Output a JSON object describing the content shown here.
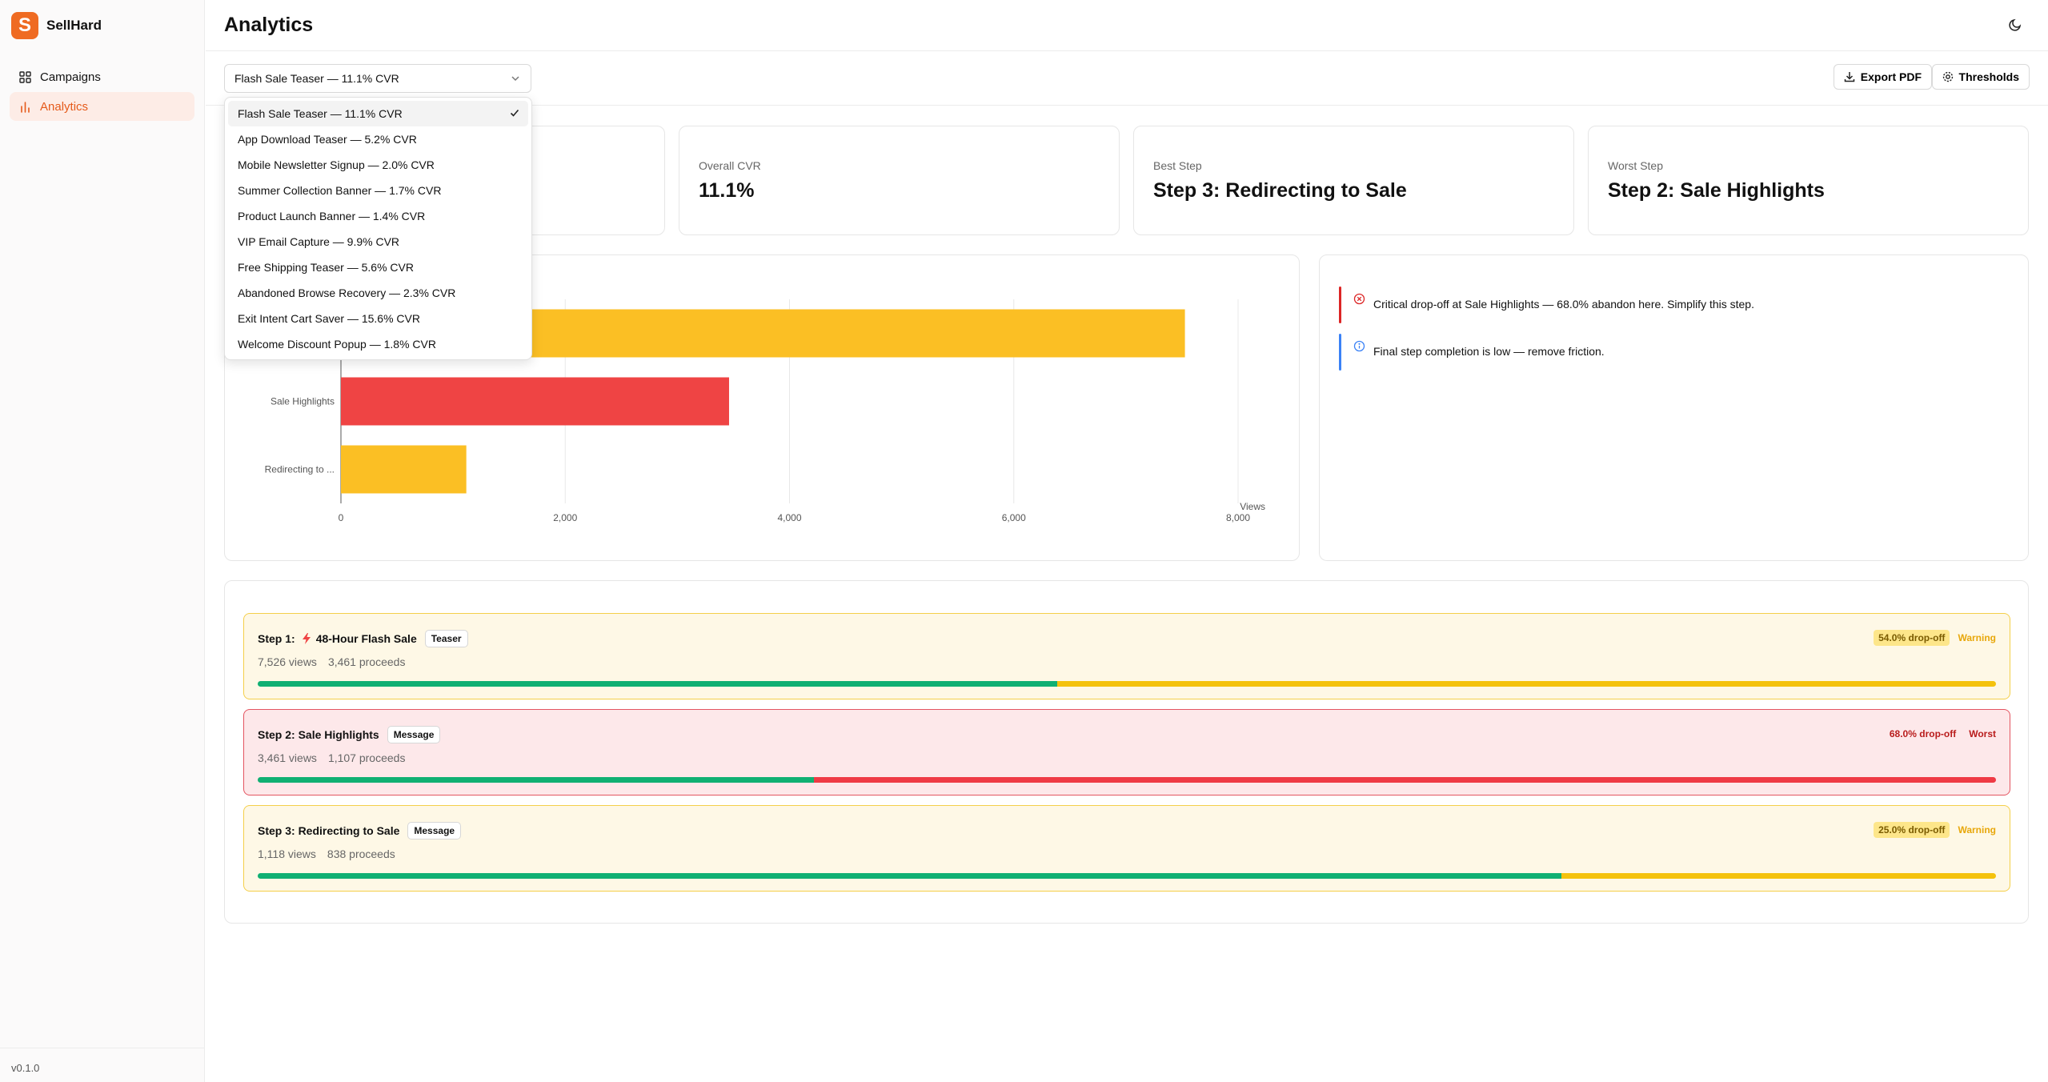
{
  "app": {
    "name": "SellHard",
    "version": "v0.1.0"
  },
  "sidebar": {
    "items": [
      {
        "label": "Campaigns",
        "icon": "grid-icon",
        "active": false
      },
      {
        "label": "Analytics",
        "icon": "bar-chart-icon",
        "active": true
      }
    ]
  },
  "header": {
    "title": "Analytics"
  },
  "toolbar": {
    "selected_campaign": "Flash Sale Teaser — 11.1% CVR",
    "export_label": "Export PDF",
    "thresholds_label": "Thresholds"
  },
  "dropdown": {
    "options": [
      "Flash Sale Teaser — 11.1% CVR",
      "App Download Teaser — 5.2% CVR",
      "Mobile Newsletter Signup — 2.0% CVR",
      "Summer Collection Banner — 1.7% CVR",
      "Product Launch Banner — 1.4% CVR",
      "VIP Email Capture — 9.9% CVR",
      "Free Shipping Teaser — 5.6% CVR",
      "Abandoned Browse Recovery — 2.3% CVR",
      "Exit Intent Cart Saver — 15.6% CVR",
      "Welcome Discount Popup — 1.8% CVR"
    ],
    "selected_index": 0
  },
  "stats": [
    {
      "label": "Overall CVR",
      "value": "11.1%"
    },
    {
      "label": "Best Step",
      "value": "Step 3: Redirecting to Sale"
    },
    {
      "label": "Worst Step",
      "value": "Step 2: Sale Highlights"
    }
  ],
  "chart_data": {
    "type": "bar",
    "orientation": "horizontal",
    "categories": [
      "48-Hour Flash Sale",
      "Sale Highlights",
      "Redirecting to ..."
    ],
    "values": [
      7526,
      3461,
      1118
    ],
    "colors": [
      "#fbbf24",
      "#ef4444",
      "#fbbf24"
    ],
    "xlabel": "Views",
    "xlim": [
      0,
      8000
    ],
    "xticks": [
      "0",
      "2,000",
      "4,000",
      "6,000",
      "8,000"
    ],
    "grid": true
  },
  "insights": [
    {
      "type": "critical",
      "text": "Critical drop-off at Sale Highlights — 68.0% abandon here. Simplify this step.",
      "color": "#dc2626"
    },
    {
      "type": "info",
      "text": "Final step completion is low — remove friction.",
      "color": "#3b82f6"
    }
  ],
  "steps": [
    {
      "title": "Step 1:",
      "name": "48-Hour Flash Sale",
      "has_bolt": true,
      "tag": "Teaser",
      "views": "7,526 views",
      "proceeds": "3,461 proceeds",
      "dropoff": "54.0% drop-off",
      "state": "Warning",
      "kind": "warn",
      "proceed_ratio": 0.46
    },
    {
      "title": "Step 2: Sale Highlights",
      "name": "",
      "has_bolt": false,
      "tag": "Message",
      "views": "3,461 views",
      "proceeds": "1,107 proceeds",
      "dropoff": "68.0% drop-off",
      "state": "Worst",
      "kind": "worst",
      "proceed_ratio": 0.32
    },
    {
      "title": "Step 3: Redirecting to Sale",
      "name": "",
      "has_bolt": false,
      "tag": "Message",
      "views": "1,118 views",
      "proceeds": "838 proceeds",
      "dropoff": "25.0% drop-off",
      "state": "Warning",
      "kind": "warn",
      "proceed_ratio": 0.75
    }
  ],
  "colors": {
    "accent": "#ef6b22",
    "success": "#10b073",
    "warning": "#f4c20d",
    "danger": "#ef4444"
  }
}
